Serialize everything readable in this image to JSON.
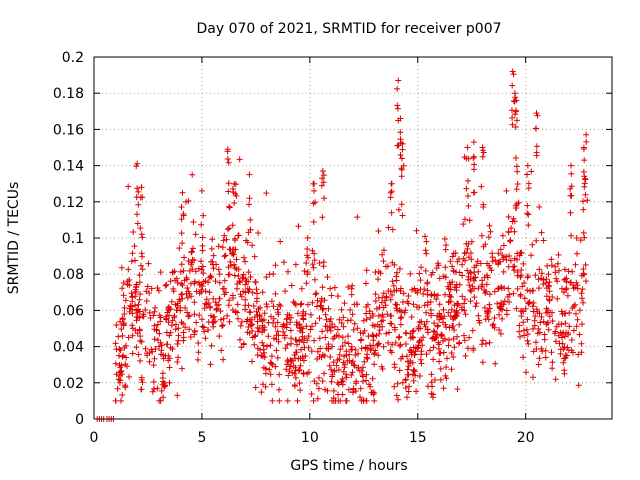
{
  "chart_data": {
    "type": "scatter",
    "title": "Day 070 of 2021, SRMTID for receiver p007",
    "xlabel": "GPS time / hours",
    "ylabel": "SRMTID / TECUs",
    "xlim": [
      0,
      24
    ],
    "ylim": [
      0,
      0.2
    ],
    "xticks": [
      0,
      5,
      10,
      15,
      20
    ],
    "xtick_labels": [
      "0",
      "5",
      "10",
      "15",
      "20"
    ],
    "yticks": [
      0,
      0.02,
      0.04,
      0.06,
      0.08,
      0.1,
      0.12,
      0.14,
      0.16,
      0.18,
      0.2
    ],
    "ytick_labels": [
      "0",
      "0.02",
      "0.04",
      "0.06",
      "0.08",
      "0.1",
      "0.12",
      "0.14",
      "0.16",
      "0.18",
      "0.2"
    ],
    "grid": true,
    "marker": "+",
    "color": "#e00000",
    "series": [
      {
        "name": "SRMTID",
        "trend": [
          [
            0.9,
            0.0
          ],
          [
            1.1,
            0.035
          ],
          [
            1.5,
            0.05
          ],
          [
            2.0,
            0.065
          ],
          [
            2.3,
            0.05
          ],
          [
            2.8,
            0.04
          ],
          [
            3.2,
            0.035
          ],
          [
            3.6,
            0.055
          ],
          [
            4.0,
            0.06
          ],
          [
            4.5,
            0.075
          ],
          [
            5.0,
            0.06
          ],
          [
            5.5,
            0.065
          ],
          [
            6.0,
            0.07
          ],
          [
            6.5,
            0.085
          ],
          [
            7.0,
            0.065
          ],
          [
            7.5,
            0.055
          ],
          [
            8.0,
            0.045
          ],
          [
            8.5,
            0.045
          ],
          [
            9.0,
            0.04
          ],
          [
            9.5,
            0.045
          ],
          [
            10.0,
            0.05
          ],
          [
            10.5,
            0.055
          ],
          [
            11.0,
            0.04
          ],
          [
            11.5,
            0.035
          ],
          [
            12.0,
            0.035
          ],
          [
            12.5,
            0.035
          ],
          [
            13.0,
            0.045
          ],
          [
            13.5,
            0.06
          ],
          [
            14.0,
            0.06
          ],
          [
            14.5,
            0.04
          ],
          [
            15.0,
            0.05
          ],
          [
            15.5,
            0.05
          ],
          [
            16.0,
            0.055
          ],
          [
            16.5,
            0.06
          ],
          [
            17.0,
            0.07
          ],
          [
            17.5,
            0.075
          ],
          [
            18.0,
            0.065
          ],
          [
            18.5,
            0.07
          ],
          [
            19.0,
            0.075
          ],
          [
            19.5,
            0.085
          ],
          [
            20.0,
            0.07
          ],
          [
            20.5,
            0.06
          ],
          [
            21.0,
            0.065
          ],
          [
            21.5,
            0.06
          ],
          [
            22.0,
            0.055
          ],
          [
            22.5,
            0.06
          ],
          [
            22.8,
            0.065
          ]
        ],
        "zeros": [
          0.15,
          0.25,
          0.35,
          0.45,
          0.6,
          0.7,
          0.8,
          0.9
        ],
        "peaks": [
          [
            2.0,
            0.141
          ],
          [
            2.2,
            0.128
          ],
          [
            4.1,
            0.125
          ],
          [
            5.0,
            0.126
          ],
          [
            6.2,
            0.149
          ],
          [
            6.5,
            0.13
          ],
          [
            7.2,
            0.135
          ],
          [
            9.9,
            0.1
          ],
          [
            10.2,
            0.13
          ],
          [
            10.6,
            0.137
          ],
          [
            13.8,
            0.13
          ],
          [
            14.1,
            0.187
          ],
          [
            14.2,
            0.166
          ],
          [
            14.3,
            0.152
          ],
          [
            15.4,
            0.098
          ],
          [
            17.3,
            0.15
          ],
          [
            17.6,
            0.153
          ],
          [
            18.0,
            0.15
          ],
          [
            19.4,
            0.192
          ],
          [
            19.5,
            0.18
          ],
          [
            19.6,
            0.165
          ],
          [
            20.1,
            0.14
          ],
          [
            20.5,
            0.169
          ],
          [
            22.1,
            0.14
          ],
          [
            22.8,
            0.157
          ],
          [
            22.7,
            0.15
          ]
        ],
        "lows": [
          [
            1.2,
            0.02
          ],
          [
            3.2,
            0.012
          ],
          [
            3.5,
            0.02
          ],
          [
            9.3,
            0.025
          ],
          [
            12.0,
            0.015
          ],
          [
            14.5,
            0.012
          ],
          [
            14.6,
            0.018
          ],
          [
            15.7,
            0.012
          ],
          [
            21.8,
            0.025
          ]
        ]
      }
    ]
  }
}
